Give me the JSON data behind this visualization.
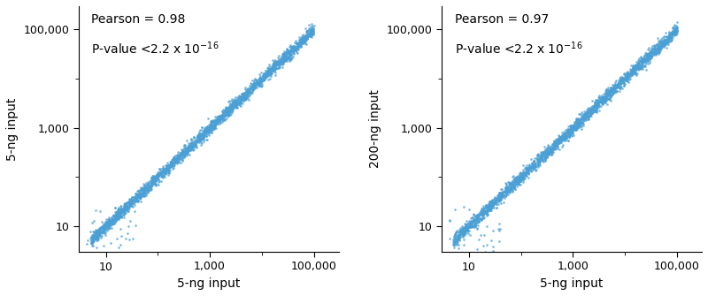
{
  "dot_color": "#4a9fd4",
  "dot_size": 3.5,
  "dot_alpha": 0.75,
  "panel1": {
    "xlabel": "5-ng input",
    "ylabel": "5-ng input",
    "pearson": "0.98"
  },
  "panel2": {
    "xlabel": "5-ng input",
    "ylabel": "200-ng input",
    "pearson": "0.97"
  },
  "xlim_log": [
    3.0,
    300000
  ],
  "ylim_log": [
    3.0,
    300000
  ],
  "major_ticks": [
    10,
    1000,
    100000
  ],
  "minor_ticks": [
    100,
    10000
  ],
  "major_ticklabels": [
    "10",
    "1,000",
    "100,000"
  ],
  "annotation_fontsize": 10,
  "axis_label_fontsize": 10,
  "tick_fontsize": 9,
  "background_color": "#ffffff",
  "seed1": 42,
  "seed2": 99,
  "n_main": 2500,
  "n_scatter": 35
}
